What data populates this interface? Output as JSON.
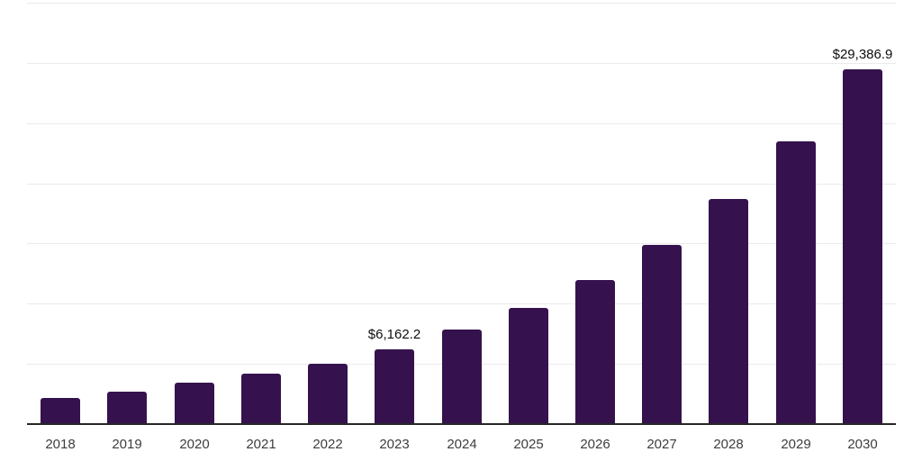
{
  "chart_data": {
    "type": "bar",
    "title": "",
    "xlabel": "",
    "ylabel": "",
    "categories": [
      "2018",
      "2019",
      "2020",
      "2021",
      "2022",
      "2023",
      "2024",
      "2025",
      "2026",
      "2027",
      "2028",
      "2029",
      "2030"
    ],
    "values": [
      2120,
      2620,
      3370,
      4140,
      4960,
      6162.2,
      7770,
      9580,
      11910,
      14830,
      18600,
      23390,
      29386.9
    ],
    "data_labels": [
      {
        "category": "2023",
        "text": "$6,162.2"
      },
      {
        "category": "2030",
        "text": "$29,386.9"
      }
    ],
    "ylim": [
      0,
      35000
    ],
    "gridline_step": 5000,
    "grid": true,
    "legend_position": "none",
    "colors": {
      "bar": "#35124d",
      "axis_line": "#262626",
      "gridline": "#ebebeb",
      "tick_label": "#3d3d3d",
      "data_label": "#0d0d0d",
      "background": "#ffffff"
    }
  }
}
